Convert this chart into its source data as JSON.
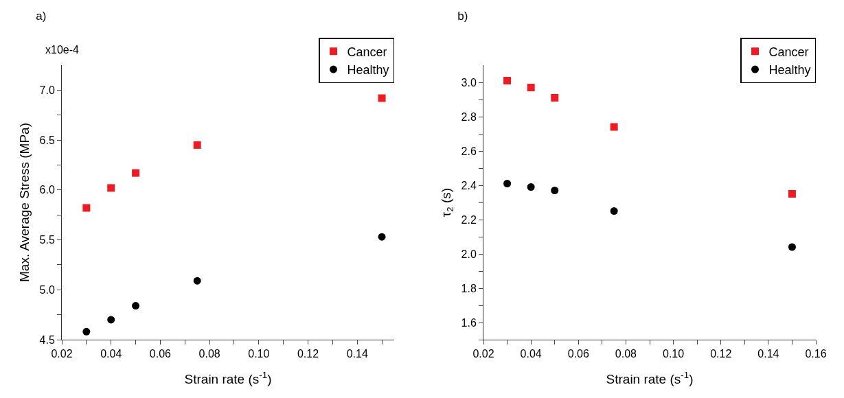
{
  "chart_data": [
    {
      "type": "scatter",
      "title": "a)",
      "xlabel": "Strain rate (s$^{-1}$)",
      "ylabel": "Max. Average Stress (MPa)",
      "annotations": [
        "x10e-4"
      ],
      "x": [
        0.03,
        0.04,
        0.05,
        0.075,
        0.15
      ],
      "series": [
        {
          "name": "Cancer",
          "color": "#ed1c24",
          "marker": "square",
          "values": [
            5.82,
            6.02,
            6.17,
            6.45,
            6.92
          ]
        },
        {
          "name": "Healthy",
          "color": "#000000",
          "marker": "circle",
          "values": [
            4.58,
            4.7,
            4.84,
            5.09,
            5.53
          ]
        }
      ],
      "xlim": [
        0.02,
        0.155
      ],
      "xticks": [
        0.02,
        {
          "value": 0.03,
          "label": null
        },
        0.04,
        {
          "value": 0.05,
          "label": null
        },
        0.06,
        {
          "value": 0.07,
          "label": null
        },
        0.08,
        {
          "value": 0.09,
          "label": null
        },
        {
          "value": 0.1,
          "label": "0.10"
        },
        {
          "value": 0.11,
          "label": null
        },
        0.12,
        {
          "value": 0.13,
          "label": null
        },
        0.14,
        {
          "value": 0.15,
          "label": null
        }
      ],
      "ylim": [
        4.5,
        7.25
      ],
      "yticks": [
        4.5,
        {
          "value": 4.75,
          "label": null
        },
        {
          "value": 5,
          "label": "5.0"
        },
        {
          "value": 5.25,
          "label": null
        },
        5.5,
        {
          "value": 5.75,
          "label": null
        },
        {
          "value": 6,
          "label": "6.0"
        },
        {
          "value": 6.25,
          "label": null
        },
        6.5,
        {
          "value": 6.75,
          "label": null
        },
        {
          "value": 7,
          "label": "7.0"
        }
      ],
      "grid": false,
      "legend": "top right"
    },
    {
      "type": "scatter",
      "title": "b)",
      "xlabel": "Strain rate (s$^{-1}$)",
      "ylabel": "τ$_{2}$ (s)",
      "x": [
        0.03,
        0.04,
        0.05,
        0.075,
        0.15
      ],
      "series": [
        {
          "name": "Cancer",
          "color": "#ed1c24",
          "marker": "square",
          "values": [
            3.01,
            2.97,
            2.91,
            2.74,
            2.35
          ]
        },
        {
          "name": "Healthy",
          "color": "#000000",
          "marker": "circle",
          "values": [
            2.41,
            2.39,
            2.37,
            2.25,
            2.04
          ]
        }
      ],
      "xlim": [
        0.02,
        0.16
      ],
      "xticks": [
        0.02,
        {
          "value": 0.03,
          "label": null
        },
        0.04,
        {
          "value": 0.05,
          "label": null
        },
        0.06,
        {
          "value": 0.07,
          "label": null
        },
        0.08,
        {
          "value": 0.09,
          "label": null
        },
        {
          "value": 0.1,
          "label": "0.10"
        },
        {
          "value": 0.11,
          "label": null
        },
        0.12,
        {
          "value": 0.13,
          "label": null
        },
        0.14,
        {
          "value": 0.15,
          "label": null
        },
        0.16
      ],
      "ylim": [
        1.5,
        3.1
      ],
      "yticks": [
        {
          "value": 1.5,
          "label": null
        },
        1.6,
        {
          "value": 1.7,
          "label": null
        },
        1.8,
        {
          "value": 1.9,
          "label": null
        },
        {
          "value": 2,
          "label": "2.0"
        },
        {
          "value": 2.1,
          "label": null
        },
        2.2,
        {
          "value": 2.3,
          "label": null
        },
        2.4,
        {
          "value": 2.5,
          "label": null
        },
        2.6,
        {
          "value": 2.7,
          "label": null
        },
        2.8,
        {
          "value": 2.9,
          "label": null
        },
        {
          "value": 3,
          "label": "3.0"
        }
      ],
      "grid": false,
      "legend": "top right"
    }
  ]
}
